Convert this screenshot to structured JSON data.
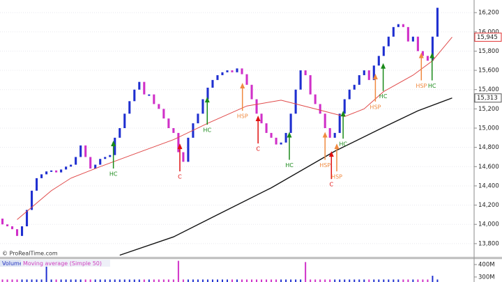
{
  "chart_data": {
    "type": "ohlc",
    "xlim": [
      -0.5,
      96.5
    ],
    "ylim": [
      13669,
      16331
    ],
    "yticks": [
      {
        "value": 13800,
        "label": "13,800"
      },
      {
        "value": 14000,
        "label": "14,000"
      },
      {
        "value": 14200,
        "label": "14,200"
      },
      {
        "value": 14400,
        "label": "14,400"
      },
      {
        "value": 14600,
        "label": "14,600"
      },
      {
        "value": 14800,
        "label": "14,800"
      },
      {
        "value": 15000,
        "label": "15,000"
      },
      {
        "value": 15200,
        "label": "15,200"
      },
      {
        "value": 15400,
        "label": "15,400"
      },
      {
        "value": 15600,
        "label": "15,600"
      },
      {
        "value": 15800,
        "label": "15,800"
      },
      {
        "value": 16000,
        "label": "16,000"
      },
      {
        "value": 16200,
        "label": "16,200"
      }
    ],
    "grid": true,
    "up_color": "#1f2fd0",
    "down_color": "#d030c8",
    "x": [
      0,
      1,
      2,
      3,
      4,
      5,
      6,
      7,
      8,
      9,
      10,
      11,
      12,
      13,
      14,
      15,
      16,
      17,
      18,
      19,
      20,
      21,
      22,
      23,
      24,
      25,
      26,
      27,
      28,
      29,
      30,
      31,
      32,
      33,
      34,
      35,
      36,
      37,
      38,
      39,
      40,
      41,
      42,
      43,
      44,
      45,
      46,
      47,
      48,
      49,
      50,
      51,
      52,
      53,
      54,
      55,
      56,
      57,
      58,
      59,
      60,
      61,
      62,
      63,
      64,
      65,
      66,
      67,
      68,
      69,
      70,
      71,
      72,
      73,
      74,
      75,
      76,
      77,
      78,
      79,
      80,
      81,
      82,
      83,
      84,
      85,
      86,
      87,
      88,
      89
    ],
    "open": [
      14060,
      14000,
      13980,
      13950,
      13880,
      13980,
      14150,
      14350,
      14480,
      14520,
      14550,
      14560,
      14540,
      14570,
      14600,
      14620,
      14700,
      14820,
      14700,
      14580,
      14620,
      14680,
      14700,
      14720,
      14900,
      15000,
      15150,
      15280,
      15400,
      15480,
      15350,
      15350,
      15250,
      15200,
      15100,
      15000,
      14950,
      14750,
      14650,
      14900,
      15050,
      15150,
      15300,
      15420,
      15500,
      15550,
      15580,
      15600,
      15580,
      15620,
      15560,
      15450,
      15300,
      15150,
      15050,
      14950,
      14900,
      14830,
      14850,
      14950,
      15150,
      15400,
      15600,
      15550,
      15350,
      15250,
      15150,
      15000,
      14900,
      14950,
      15150,
      15300,
      15400,
      15450,
      15550,
      15600,
      15500,
      15650,
      15750,
      15850,
      15950,
      16050,
      16080,
      16050,
      15900,
      15950,
      15800,
      15750,
      15700,
      15950
    ],
    "close": [
      14000,
      13980,
      13950,
      13880,
      13980,
      14150,
      14350,
      14480,
      14520,
      14550,
      14560,
      14540,
      14570,
      14600,
      14620,
      14700,
      14820,
      14700,
      14580,
      14620,
      14680,
      14700,
      14720,
      14900,
      15000,
      15150,
      15280,
      15400,
      15480,
      15350,
      15350,
      15250,
      15200,
      15100,
      15000,
      14950,
      14750,
      14650,
      14900,
      15050,
      15150,
      15300,
      15420,
      15500,
      15550,
      15580,
      15600,
      15580,
      15620,
      15560,
      15450,
      15300,
      15150,
      15050,
      14950,
      14900,
      14830,
      14850,
      14950,
      15150,
      15400,
      15600,
      15550,
      15350,
      15250,
      15150,
      15000,
      14900,
      14950,
      15150,
      15300,
      15400,
      15450,
      15550,
      15600,
      15500,
      15650,
      15750,
      15850,
      15950,
      16050,
      16080,
      16050,
      15900,
      15950,
      15800,
      15750,
      15700,
      15950,
      16250
    ],
    "moving_averages": [
      {
        "color": "#e04848",
        "x": [
          3,
          10,
          14,
          20,
          28,
          35,
          42,
          50,
          57,
          64,
          70,
          74,
          78,
          84,
          88,
          92
        ],
        "values": [
          14050,
          14350,
          14480,
          14600,
          14750,
          14880,
          15050,
          15230,
          15290,
          15200,
          15120,
          15200,
          15380,
          15550,
          15700,
          15945
        ]
      },
      {
        "color": "#111111",
        "x": [
          24,
          35,
          44,
          55,
          68,
          78,
          85,
          92
        ],
        "values": [
          13680,
          13870,
          14100,
          14380,
          14760,
          15010,
          15180,
          15313
        ]
      }
    ],
    "price_markers": [
      {
        "value": 15945,
        "label": "15,945",
        "color": "#e03030"
      },
      {
        "value": 15313,
        "label": "15,313",
        "color": "#555555"
      }
    ],
    "annotations": [
      {
        "text": "HC",
        "x": 22.7,
        "y": 14870,
        "color": "#1a8a1a"
      },
      {
        "text": "C",
        "x": 36.3,
        "y": 14840,
        "color": "#e01010"
      },
      {
        "text": "HC",
        "x": 41.9,
        "y": 15325,
        "color": "#1a8a1a"
      },
      {
        "text": "HSP",
        "x": 49.1,
        "y": 15470,
        "color": "#f08a40"
      },
      {
        "text": "C",
        "x": 52.3,
        "y": 15130,
        "color": "#e01010"
      },
      {
        "text": "HC",
        "x": 58.7,
        "y": 14960,
        "color": "#1a8a1a"
      },
      {
        "text": "HSP",
        "x": 66,
        "y": 14960,
        "color": "#f08a40"
      },
      {
        "text": "C",
        "x": 67.3,
        "y": 14760,
        "color": "#e01010"
      },
      {
        "text": "HSP",
        "x": 68.4,
        "y": 14840,
        "color": "#f08a40"
      },
      {
        "text": "HC",
        "x": 69.7,
        "y": 15180,
        "color": "#1a8a1a"
      },
      {
        "text": "HSP",
        "x": 76.3,
        "y": 15565,
        "color": "#f08a40"
      },
      {
        "text": "HC",
        "x": 77.9,
        "y": 15675,
        "color": "#1a8a1a"
      },
      {
        "text": "HSP",
        "x": 85.7,
        "y": 15785,
        "color": "#f08a40"
      },
      {
        "text": "HC",
        "x": 87.9,
        "y": 15785,
        "color": "#1a8a1a"
      }
    ],
    "copyright": "© ProRealTime.com",
    "volume_panel": {
      "labels": [
        "Volume",
        "Moving average (Simple 50)"
      ],
      "ylim": [
        260,
        450
      ],
      "yticks": [
        {
          "value": 400,
          "label": "400M"
        },
        {
          "value": 300,
          "label": "300M"
        }
      ],
      "values": [
        280,
        280,
        280,
        280,
        280,
        280,
        280,
        280,
        280,
        430,
        280,
        280,
        280,
        280,
        280,
        280,
        280,
        280,
        280,
        280,
        280,
        280,
        280,
        280,
        280,
        280,
        280,
        280,
        280,
        280,
        280,
        280,
        280,
        280,
        280,
        280,
        430,
        280,
        280,
        280,
        280,
        280,
        280,
        280,
        280,
        280,
        280,
        280,
        280,
        280,
        280,
        280,
        280,
        280,
        280,
        280,
        280,
        280,
        280,
        280,
        280,
        280,
        420,
        280,
        280,
        280,
        280,
        280,
        280,
        280,
        280,
        280,
        280,
        280,
        280,
        280,
        280,
        280,
        280,
        280,
        280,
        280,
        280,
        280,
        280,
        280,
        280,
        280,
        310,
        280
      ]
    }
  }
}
